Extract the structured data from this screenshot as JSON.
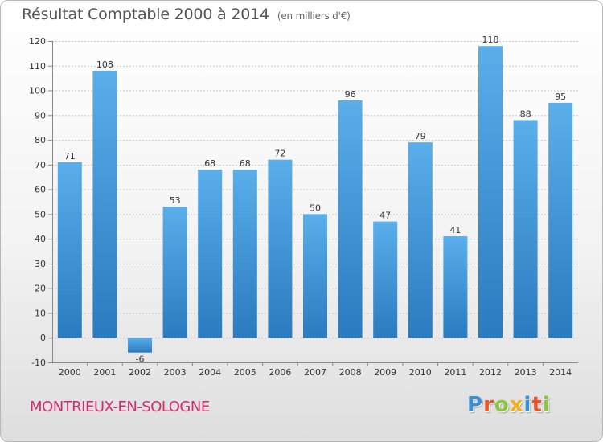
{
  "chart_data": {
    "type": "bar",
    "title": "Résultat Comptable 2000 à 2014",
    "subtitle": "(en milliers d'€)",
    "categories": [
      "2000",
      "2001",
      "2002",
      "2003",
      "2004",
      "2005",
      "2006",
      "2007",
      "2008",
      "2009",
      "2010",
      "2011",
      "2012",
      "2013",
      "2014"
    ],
    "values": [
      71,
      108,
      -6,
      53,
      68,
      68,
      72,
      50,
      96,
      47,
      79,
      41,
      118,
      88,
      95
    ],
    "ylim": [
      -10,
      120
    ],
    "yticks": [
      -10,
      0,
      10,
      20,
      30,
      40,
      50,
      60,
      70,
      80,
      90,
      100,
      110,
      120
    ],
    "grid": true,
    "bar_color_top": "#5aaeea",
    "bar_color_bottom": "#2a7bbf"
  },
  "footer": {
    "commune": "MONTRIEUX-EN-SOLOGNE",
    "logo_letters": [
      "P",
      "r",
      "o",
      "x",
      "i",
      "t",
      "i"
    ],
    "logo_colors": [
      "#3a8fd8",
      "#e8542a",
      "#8cc63e",
      "#f0b21a",
      "#3a8fd8",
      "#e8542a",
      "#8cc63e"
    ]
  }
}
